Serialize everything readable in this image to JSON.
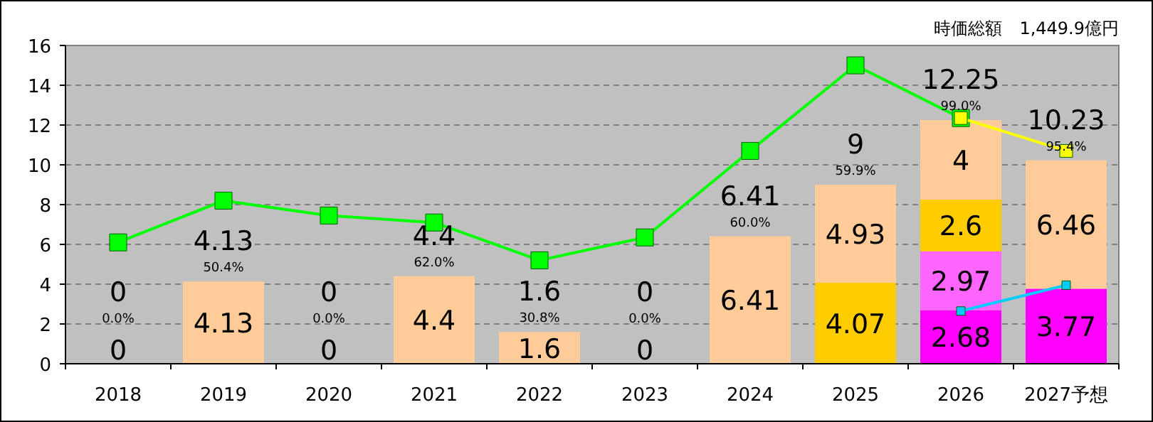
{
  "chart_data": {
    "type": "bar",
    "stacked": true,
    "categories": [
      "2018",
      "2019",
      "2020",
      "2021",
      "2022",
      "2023",
      "2024",
      "2025",
      "2026",
      "2027予想"
    ],
    "series": [
      {
        "color": "#ff00ff",
        "values": [
          null,
          null,
          null,
          null,
          null,
          null,
          null,
          null,
          2.68,
          3.77
        ],
        "value_labels": [
          null,
          null,
          null,
          null,
          null,
          null,
          null,
          null,
          "2.68",
          "3.77"
        ]
      },
      {
        "color": "#ff66ff",
        "values": [
          null,
          null,
          null,
          null,
          null,
          null,
          null,
          null,
          2.97,
          null
        ],
        "value_labels": [
          null,
          null,
          null,
          null,
          null,
          null,
          null,
          null,
          "2.97",
          null
        ]
      },
      {
        "color": "#ffcc00",
        "values": [
          null,
          null,
          null,
          null,
          null,
          null,
          null,
          4.07,
          2.6,
          null
        ],
        "value_labels": [
          null,
          null,
          null,
          null,
          null,
          null,
          null,
          "4.07",
          "2.6",
          null
        ]
      },
      {
        "color": "#ffcc99",
        "values": [
          0,
          4.13,
          0,
          4.4,
          1.6,
          0,
          6.41,
          4.93,
          4,
          6.46
        ],
        "value_labels": [
          "0",
          "4.13",
          "0",
          "4.4",
          "1.6",
          "0",
          "6.41",
          "4.93",
          "4",
          "6.46"
        ]
      },
      {
        "type": "line",
        "color": "#00ff00",
        "marker": "square",
        "line_style": "solid",
        "values": [
          6.1,
          8.2,
          7.45,
          7.1,
          5.2,
          6.35,
          10.7,
          15.0,
          12.35,
          null
        ]
      },
      {
        "type": "line",
        "color": "#ffff00",
        "marker": "square",
        "line_style": "solid",
        "values": [
          null,
          null,
          null,
          null,
          null,
          null,
          null,
          null,
          12.35,
          10.7
        ]
      },
      {
        "type": "line",
        "color": "#00ccff",
        "marker": "square",
        "line_style": "solid",
        "values": [
          null,
          null,
          null,
          null,
          null,
          null,
          null,
          null,
          2.65,
          3.95
        ]
      }
    ],
    "totals": [
      "0",
      "4.13",
      "0",
      "4.4",
      "1.6",
      "0",
      "6.41",
      "9",
      "12.25",
      "10.23"
    ],
    "ylim": [
      0,
      16
    ],
    "yticks": [
      0,
      2,
      4,
      6,
      8,
      10,
      12,
      14,
      16
    ],
    "grid": "y",
    "annotations": [
      "時価総額　1,449.9億円",
      "0.0%",
      "50.4%",
      "0.0%",
      "62.0%",
      "30.8%",
      "0.0%",
      "60.0%",
      "59.9%",
      "99.0%",
      "95.4%"
    ]
  }
}
